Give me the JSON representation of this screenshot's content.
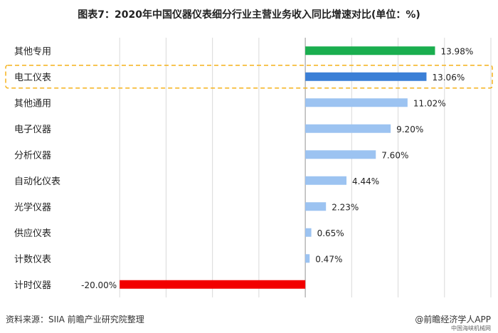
{
  "title": "图表7：2020年中国仪器仪表细分行业主营业务收入同比增速对比(单位：%)",
  "footer": {
    "source": "资料来源：SIIA 前瞻产业研究院整理",
    "brand": "@前瞻经济学人APP",
    "sub_brand": "中国海峡机械网"
  },
  "colors": {
    "positive_top": "#1aae4f",
    "highlight": "#3b7fd6",
    "positive": "#9cc3f1",
    "negative": "#f20000",
    "highlight_frame": "#f5b21a",
    "grid": "#d9d9d9"
  },
  "chart_data": {
    "type": "bar",
    "orientation": "horizontal",
    "categories": [
      "其他专用",
      "电工仪表",
      "其他通用",
      "电子仪器",
      "分析仪器",
      "自动化仪表",
      "光学仪器",
      "供应仪表",
      "计数仪表",
      "计时仪器"
    ],
    "values": [
      13.98,
      13.06,
      11.02,
      9.2,
      7.6,
      4.44,
      2.23,
      0.65,
      0.47,
      -20.0
    ],
    "labels": [
      "13.98%",
      "13.06%",
      "11.02%",
      "9.20%",
      "7.60%",
      "4.44%",
      "2.23%",
      "0.65%",
      "0.47%",
      "-20.00%"
    ],
    "highlighted_category": "电工仪表",
    "xlim": [
      -25,
      20
    ],
    "grid": true
  }
}
